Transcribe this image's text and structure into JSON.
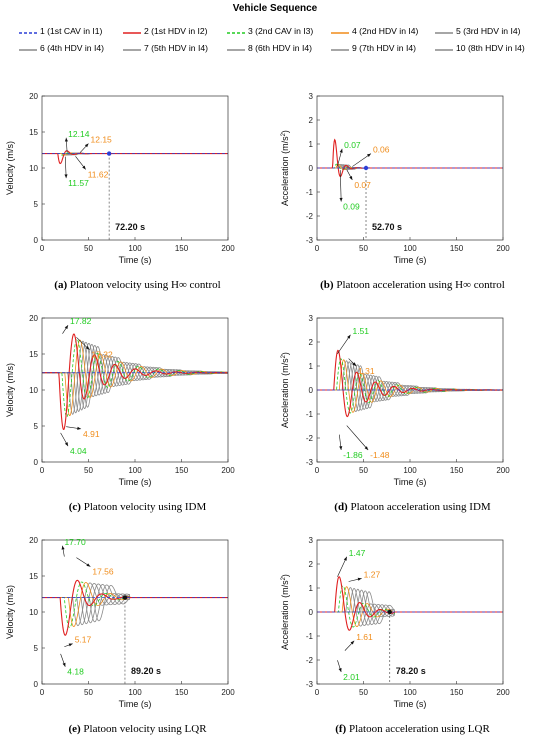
{
  "legend": {
    "title": "Vehicle Sequence",
    "entries": [
      {
        "label": "1 (1st CAV in I1)",
        "color": "#2b3fd6",
        "dash": "3,2"
      },
      {
        "label": "2 (1st HDV in I2)",
        "color": "#e02020",
        "dash": ""
      },
      {
        "label": "3 (2nd CAV in I3)",
        "color": "#22cc22",
        "dash": "3,2"
      },
      {
        "label": "4 (2nd HDV in I4)",
        "color": "#f08c1a",
        "dash": ""
      },
      {
        "label": "5 (3rd HDV in I4)",
        "color": "#888888",
        "dash": ""
      },
      {
        "label": "6 (4th HDV in I4)",
        "color": "#888888",
        "dash": ""
      },
      {
        "label": "7 (5th HDV in I4)",
        "color": "#888888",
        "dash": ""
      },
      {
        "label": "8 (6th HDV in I4)",
        "color": "#888888",
        "dash": ""
      },
      {
        "label": "9 (7th HDV in I4)",
        "color": "#888888",
        "dash": ""
      },
      {
        "label": "10 (8th HDV in I4)",
        "color": "#888888",
        "dash": ""
      }
    ]
  },
  "captions": [
    {
      "letter": "(a)",
      "text": "Platoon velocity using H∞ control"
    },
    {
      "letter": "(b)",
      "text": "Platoon acceleration using H∞ control"
    },
    {
      "letter": "(c)",
      "text": "Platoon velocity using IDM"
    },
    {
      "letter": "(d)",
      "text": "Platoon acceleration using IDM"
    },
    {
      "letter": "(e)",
      "text": "Platoon velocity using LQR"
    },
    {
      "letter": "(f)",
      "text": "Platoon acceleration using LQR"
    }
  ],
  "chart_data": [
    {
      "type": "line",
      "id": "a",
      "title": "",
      "xlabel": "Time (s)",
      "ylabel": "Velocity (m/s)",
      "xlim": [
        0,
        200
      ],
      "ylim": [
        0,
        20
      ],
      "xticks": [
        0,
        50,
        100,
        150,
        200
      ],
      "yticks": [
        0,
        5,
        10,
        15,
        20
      ],
      "mode": "velocity",
      "ss": 12,
      "t0": 15,
      "lead_amp": 2.4,
      "lead_decay": 0.18,
      "lead_period": 14,
      "spread": 2.0,
      "follower_amp": 0.35,
      "follower_decay": 0.12,
      "settle_time": 72.2,
      "annotations": [
        {
          "text": "12.14",
          "color": "#22cc22",
          "x": 27,
          "y": 12.14,
          "tx": 26,
          "ty": 14.2
        },
        {
          "text": "12.15",
          "color": "#f08c1a",
          "x": 41,
          "y": 12.15,
          "tx": 50,
          "ty": 13.4
        },
        {
          "text": "11.57",
          "color": "#22cc22",
          "x": 25,
          "y": 11.57,
          "tx": 26,
          "ty": 8.6
        },
        {
          "text": "11.62",
          "color": "#f08c1a",
          "x": 36,
          "y": 11.62,
          "tx": 47,
          "ty": 9.8
        }
      ],
      "settle_label": "72.20 s"
    },
    {
      "type": "line",
      "id": "b",
      "title": "",
      "xlabel": "Time (s)",
      "ylabel": "Acceleration (m/s2)",
      "xlim": [
        0,
        200
      ],
      "ylim": [
        -3,
        3
      ],
      "xticks": [
        0,
        50,
        100,
        150,
        200
      ],
      "yticks": [
        -3,
        -2,
        -1,
        0,
        1,
        2,
        3
      ],
      "mode": "accel",
      "ss": 0,
      "t0": 15,
      "lead_amp": 2.0,
      "lead_decay": 0.2,
      "lead_period": 12,
      "spread": 1.8,
      "follower_amp": 0.25,
      "follower_decay": 0.14,
      "settle_time": 52.7,
      "annotations": [
        {
          "text": "0.07",
          "color": "#22cc22",
          "x": 22,
          "y": 0.07,
          "tx": 27,
          "ty": 0.8
        },
        {
          "text": "0.06",
          "color": "#f08c1a",
          "x": 38,
          "y": 0.06,
          "tx": 58,
          "ty": 0.6
        },
        {
          "text": "0.07",
          "color": "#f08c1a",
          "x": 32,
          "y": -0.07,
          "tx": 38,
          "ty": -0.5
        },
        {
          "text": "0.09",
          "color": "#22cc22",
          "x": 25,
          "y": -0.09,
          "tx": 26,
          "ty": -1.4
        }
      ],
      "settle_label": "52.70 s"
    },
    {
      "type": "line",
      "id": "c",
      "title": "",
      "xlabel": "Time (s)",
      "ylabel": "Velocity (m/s)",
      "xlim": [
        0,
        200
      ],
      "ylim": [
        0,
        20
      ],
      "xticks": [
        0,
        50,
        100,
        150,
        200
      ],
      "yticks": [
        0,
        5,
        10,
        15,
        20
      ],
      "mode": "velocity",
      "ss": 12.4,
      "t0": 15,
      "lead_amp": 9.5,
      "lead_decay": 0.035,
      "lead_period": 22,
      "spread": 3.2,
      "follower_amp": 7.5,
      "follower_decay": 0.025,
      "settle_time": null,
      "annotations": [
        {
          "text": "17.82",
          "color": "#22cc22",
          "x": 22,
          "y": 17.82,
          "tx": 28,
          "ty": 19.0
        },
        {
          "text": "17.32",
          "color": "#f08c1a",
          "x": 37,
          "y": 17.32,
          "tx": 51,
          "ty": 15.6
        },
        {
          "text": "4.91",
          "color": "#f08c1a",
          "x": 26,
          "y": 4.91,
          "tx": 42,
          "ty": 4.6
        },
        {
          "text": "4.04",
          "color": "#22cc22",
          "x": 20,
          "y": 4.04,
          "tx": 28,
          "ty": 2.2
        }
      ],
      "settle_label": ""
    },
    {
      "type": "line",
      "id": "d",
      "title": "",
      "xlabel": "Time (s)",
      "ylabel": "Acceleration (m/s2)",
      "xlim": [
        0,
        200
      ],
      "ylim": [
        -3,
        3
      ],
      "xticks": [
        0,
        50,
        100,
        150,
        200
      ],
      "yticks": [
        -3,
        -2,
        -1,
        0,
        1,
        2,
        3
      ],
      "mode": "accel",
      "ss": 0,
      "t0": 15,
      "lead_amp": 2.0,
      "lead_decay": 0.04,
      "lead_period": 20,
      "spread": 3.0,
      "follower_amp": 1.6,
      "follower_decay": 0.03,
      "settle_time": null,
      "annotations": [
        {
          "text": "1.51",
          "color": "#22cc22",
          "x": 22,
          "y": 1.51,
          "tx": 36,
          "ty": 2.3
        },
        {
          "text": "1.31",
          "color": "#f08c1a",
          "x": 34,
          "y": 1.31,
          "tx": 42,
          "ty": 1.0
        },
        {
          "text": "-1.86",
          "color": "#22cc22",
          "x": 24,
          "y": -1.86,
          "tx": 26,
          "ty": -2.5
        },
        {
          "text": "-1.48",
          "color": "#f08c1a",
          "x": 32,
          "y": -1.48,
          "tx": 55,
          "ty": -2.5
        }
      ],
      "settle_label": ""
    },
    {
      "type": "line",
      "id": "e",
      "title": "",
      "xlabel": "Time (s)",
      "ylabel": "Velocity (m/s)",
      "xlim": [
        0,
        200
      ],
      "ylim": [
        0,
        20
      ],
      "xticks": [
        0,
        50,
        100,
        150,
        200
      ],
      "yticks": [
        0,
        5,
        10,
        15,
        20
      ],
      "mode": "lqr",
      "ss": 12,
      "t0": 15,
      "lead_amp": 7.5,
      "lead_decay": 0.06,
      "lead_period": 26,
      "spread": 4.5,
      "follower_amp": 6.0,
      "follower_decay": 0.05,
      "settle_time": 89.2,
      "annotations": [
        {
          "text": "17.70",
          "color": "#22cc22",
          "x": 24,
          "y": 17.7,
          "tx": 22,
          "ty": 19.2
        },
        {
          "text": "17.56",
          "color": "#f08c1a",
          "x": 37,
          "y": 17.56,
          "tx": 52,
          "ty": 16.3
        },
        {
          "text": "5.17",
          "color": "#f08c1a",
          "x": 24,
          "y": 5.17,
          "tx": 33,
          "ty": 5.6
        },
        {
          "text": "4.18",
          "color": "#22cc22",
          "x": 20,
          "y": 4.18,
          "tx": 25,
          "ty": 2.4
        }
      ],
      "settle_label": "89.20 s"
    },
    {
      "type": "line",
      "id": "f",
      "title": "",
      "xlabel": "Time (s)",
      "ylabel": "Acceleration (m/s2)",
      "xlim": [
        0,
        200
      ],
      "ylim": [
        -3,
        3
      ],
      "xticks": [
        0,
        50,
        100,
        150,
        200
      ],
      "yticks": [
        -3,
        -2,
        -1,
        0,
        1,
        2,
        3
      ],
      "mode": "lqr",
      "ss": 0,
      "t0": 15,
      "lead_amp": 2.0,
      "lead_decay": 0.06,
      "lead_period": 22,
      "spread": 4.0,
      "follower_amp": 1.5,
      "follower_decay": 0.05,
      "settle_time": 78.2,
      "annotations": [
        {
          "text": "1.47",
          "color": "#22cc22",
          "x": 22,
          "y": 1.47,
          "tx": 32,
          "ty": 2.3
        },
        {
          "text": "1.27",
          "color": "#f08c1a",
          "x": 34,
          "y": 1.27,
          "tx": 48,
          "ty": 1.4
        },
        {
          "text": "1.61",
          "color": "#f08c1a",
          "x": 30,
          "y": -1.61,
          "tx": 40,
          "ty": -1.2
        },
        {
          "text": "2.01",
          "color": "#22cc22",
          "x": 22,
          "y": -2.01,
          "tx": 26,
          "ty": -2.5
        }
      ],
      "settle_label": "78.20 s"
    }
  ]
}
